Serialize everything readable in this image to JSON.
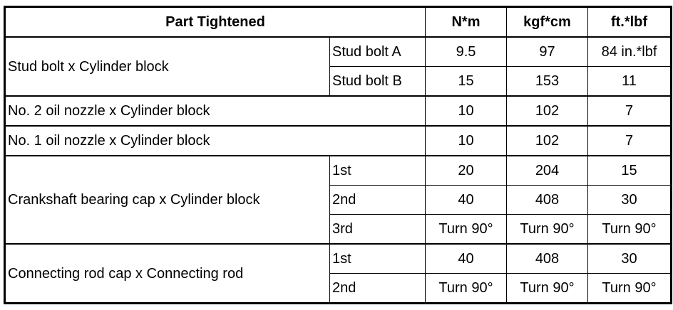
{
  "table": {
    "headers": {
      "part": "Part Tightened",
      "nm": "N*m",
      "kgfcm": "kgf*cm",
      "ftlbf": "ft.*lbf"
    },
    "rows": [
      {
        "part": "Stud bolt x Cylinder block",
        "sub": "Stud bolt A",
        "nm": "9.5",
        "kgfcm": "97",
        "ftlbf": "84 in.*lbf"
      },
      {
        "sub": "Stud bolt B",
        "nm": "15",
        "kgfcm": "153",
        "ftlbf": "11"
      },
      {
        "part": "No. 2 oil nozzle x Cylinder block",
        "nm": "10",
        "kgfcm": "102",
        "ftlbf": "7"
      },
      {
        "part": "No. 1 oil nozzle x Cylinder block",
        "nm": "10",
        "kgfcm": "102",
        "ftlbf": "7"
      },
      {
        "part": "Crankshaft bearing cap x Cylinder block",
        "sub": "1st",
        "nm": "20",
        "kgfcm": "204",
        "ftlbf": "15"
      },
      {
        "sub": "2nd",
        "nm": "40",
        "kgfcm": "408",
        "ftlbf": "30"
      },
      {
        "sub": "3rd",
        "nm": "Turn 90°",
        "kgfcm": "Turn 90°",
        "ftlbf": "Turn 90°"
      },
      {
        "part": "Connecting rod cap x Connecting rod",
        "sub": "1st",
        "nm": "40",
        "kgfcm": "408",
        "ftlbf": "30"
      },
      {
        "sub": "2nd",
        "nm": "Turn 90°",
        "kgfcm": "Turn 90°",
        "ftlbf": "Turn 90°"
      }
    ]
  }
}
